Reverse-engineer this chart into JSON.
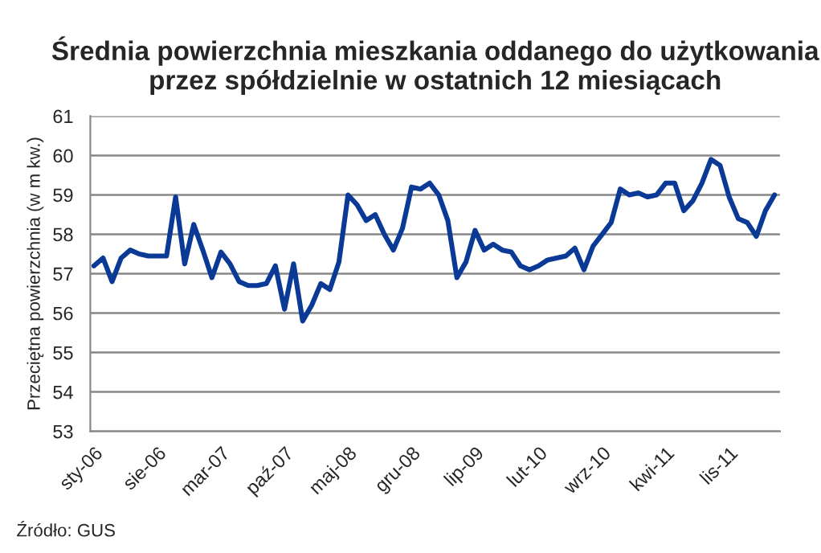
{
  "chart_data": {
    "type": "line",
    "title": "Średnia powierzchnia mieszkania oddanego do użytkowania\nprzez spółdzielnie w ostatnich 12 miesiącach",
    "ylabel": "Przeciętna powierzchnia (w m kw.)",
    "annotations": [
      "Źródło: GUS"
    ],
    "categories": [
      "sty-06",
      null,
      null,
      null,
      null,
      null,
      null,
      "sie-06",
      null,
      null,
      null,
      null,
      null,
      null,
      "mar-07",
      null,
      null,
      null,
      null,
      null,
      null,
      "paź-07",
      null,
      null,
      null,
      null,
      null,
      null,
      "maj-08",
      null,
      null,
      null,
      null,
      null,
      null,
      "gru-08",
      null,
      null,
      null,
      null,
      null,
      null,
      "lip-09",
      null,
      null,
      null,
      null,
      null,
      null,
      "lut-10",
      null,
      null,
      null,
      null,
      null,
      null,
      "wrz-10",
      null,
      null,
      null,
      null,
      null,
      null,
      "kwi-11",
      null,
      null,
      null,
      null,
      null,
      null,
      "lis-11",
      null,
      null,
      null,
      null,
      null
    ],
    "series": [
      {
        "color": "#0a3a96",
        "values": [
          57.2,
          57.4,
          56.8,
          57.4,
          57.6,
          57.5,
          57.45,
          57.45,
          57.45,
          58.95,
          57.25,
          58.25,
          57.6,
          56.9,
          57.55,
          57.25,
          56.8,
          56.7,
          56.7,
          56.75,
          57.2,
          56.1,
          57.25,
          55.8,
          56.2,
          56.75,
          56.6,
          57.3,
          59.0,
          58.75,
          58.35,
          58.5,
          58.0,
          57.6,
          58.15,
          59.2,
          59.15,
          59.3,
          59.0,
          58.35,
          56.9,
          57.3,
          58.1,
          57.6,
          57.75,
          57.6,
          57.55,
          57.2,
          57.1,
          57.2,
          57.35,
          57.4,
          57.45,
          57.65,
          57.1,
          57.7,
          58.0,
          58.3,
          59.15,
          59.0,
          59.05,
          58.95,
          59.0,
          59.3,
          59.3,
          58.6,
          58.85,
          59.3,
          59.9,
          59.75,
          58.95,
          58.4,
          58.3,
          57.95,
          58.6,
          59.0
        ]
      }
    ],
    "ylim": [
      53,
      61
    ],
    "yticks": [
      53,
      54,
      55,
      56,
      57,
      58,
      59,
      60,
      61
    ],
    "grid": "y",
    "legend": false,
    "marker": "none",
    "line_style": "solid"
  }
}
